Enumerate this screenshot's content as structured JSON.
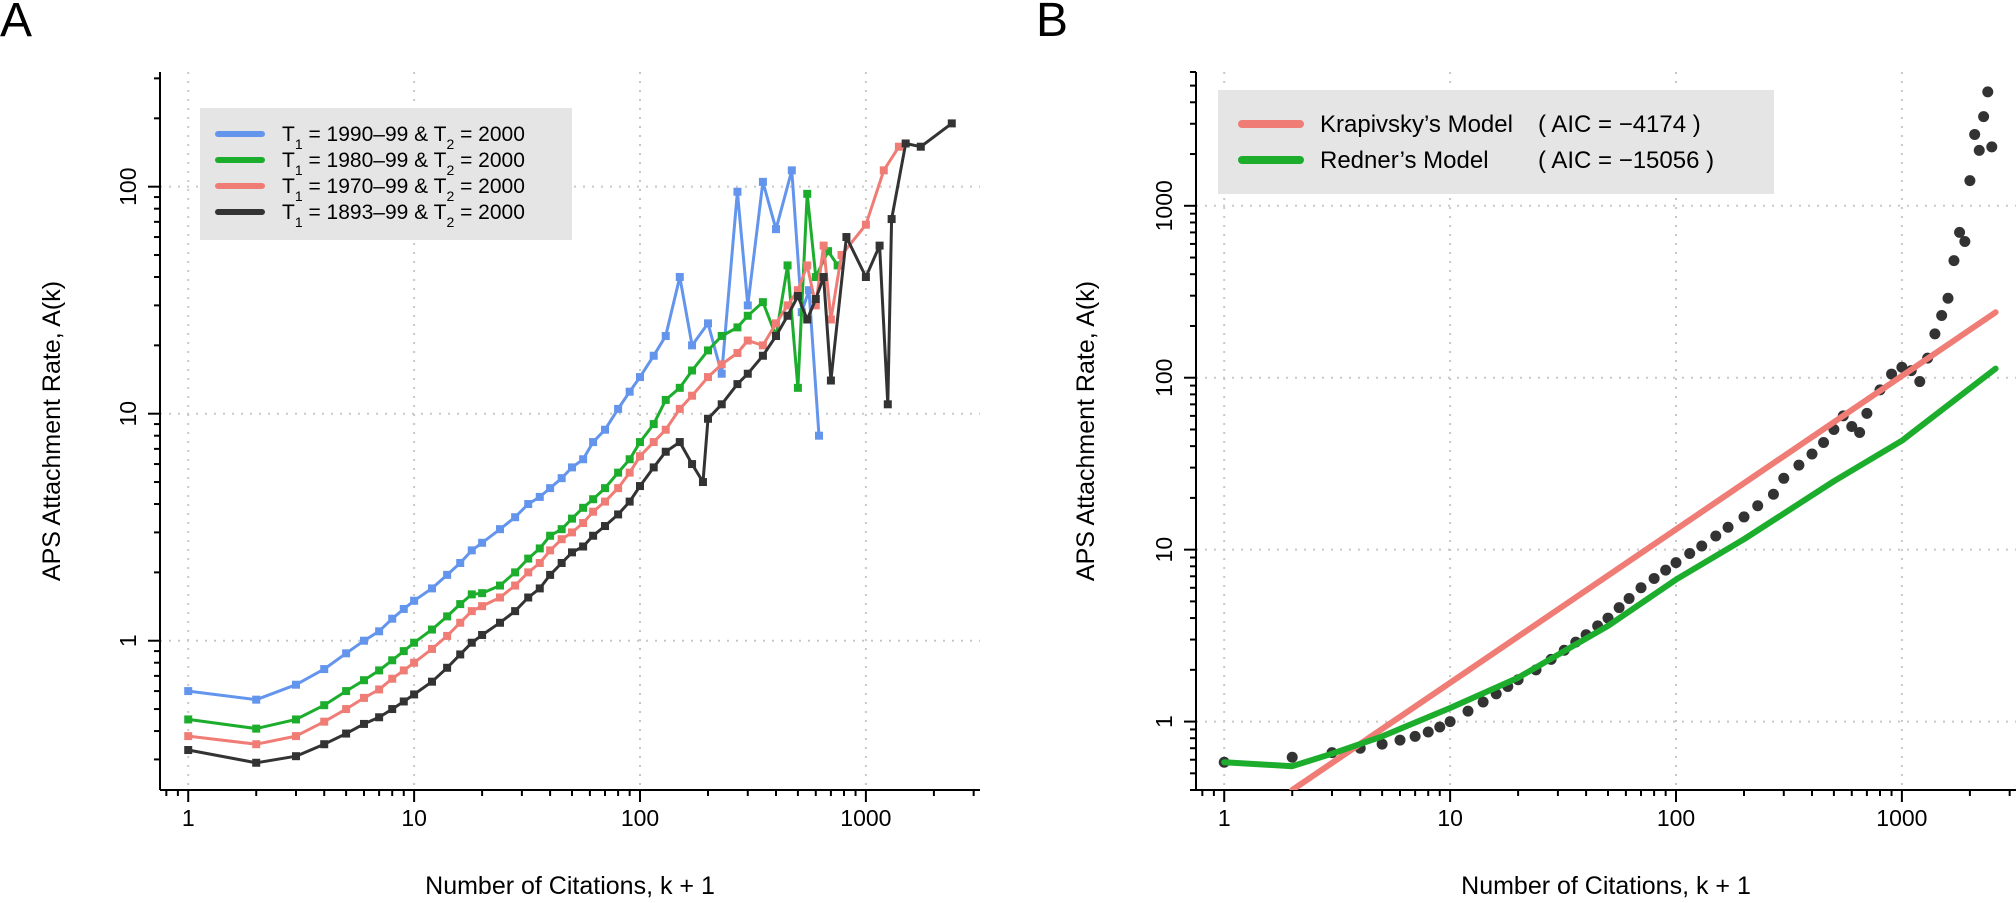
{
  "chart_data": [
    {
      "panel": "A",
      "type": "line",
      "xlabel": "Number of Citations, k + 1",
      "ylabel_main": "APS Attachment Rate, ",
      "ylabel_hat": "^",
      "ylabel_func": "A(k)",
      "x_scale": "log",
      "y_scale": "log",
      "xlim": [
        0.75,
        3200
      ],
      "ylim": [
        0.22,
        320
      ],
      "xticks": [
        {
          "v": 1,
          "label": "1"
        },
        {
          "v": 10,
          "label": "10"
        },
        {
          "v": 100,
          "label": "100"
        },
        {
          "v": 1000,
          "label": "1000"
        }
      ],
      "yticks": [
        {
          "v": 1,
          "label": "1"
        },
        {
          "v": 10,
          "label": "10"
        },
        {
          "v": 100,
          "label": "100"
        }
      ],
      "grid": true,
      "legend_position": "top-left",
      "series": [
        {
          "legend": {
            "t1": "T",
            "t1sub": "1",
            "t1rest": " = 1990–99 & T",
            "t2sub": "2",
            "t2rest": " = 2000"
          },
          "color": "#6495ED",
          "x": [
            1,
            2,
            3,
            4,
            5,
            6,
            7,
            8,
            9,
            10,
            12,
            14,
            16,
            18,
            20,
            24,
            28,
            32,
            36,
            40,
            45,
            50,
            56,
            62,
            70,
            80,
            90,
            100,
            115,
            130,
            150,
            170,
            200,
            230,
            270,
            300,
            350,
            400,
            470,
            520,
            560,
            620
          ],
          "y": [
            0.6,
            0.55,
            0.64,
            0.75,
            0.88,
            1.0,
            1.1,
            1.25,
            1.38,
            1.5,
            1.7,
            1.95,
            2.2,
            2.5,
            2.7,
            3.1,
            3.5,
            4.0,
            4.3,
            4.7,
            5.2,
            5.8,
            6.3,
            7.5,
            8.5,
            10.5,
            12.5,
            14.5,
            18.0,
            22.0,
            40.0,
            20.0,
            25.0,
            15.0,
            95.0,
            30.0,
            105.0,
            65.0,
            118.0,
            28.0,
            35.0,
            8.0
          ]
        },
        {
          "legend": {
            "t1": "T",
            "t1sub": "1",
            "t1rest": " = 1980–99 & T",
            "t2sub": "2",
            "t2rest": " = 2000"
          },
          "color": "#1DAD2D",
          "x": [
            1,
            2,
            3,
            4,
            5,
            6,
            7,
            8,
            9,
            10,
            12,
            14,
            16,
            18,
            20,
            24,
            28,
            32,
            36,
            40,
            45,
            50,
            56,
            62,
            70,
            80,
            90,
            100,
            115,
            130,
            150,
            170,
            200,
            230,
            270,
            300,
            350,
            400,
            450,
            500,
            550,
            600,
            680,
            750
          ],
          "y": [
            0.45,
            0.41,
            0.45,
            0.52,
            0.6,
            0.67,
            0.74,
            0.82,
            0.9,
            0.98,
            1.12,
            1.28,
            1.45,
            1.6,
            1.62,
            1.75,
            2.0,
            2.3,
            2.55,
            2.9,
            3.1,
            3.45,
            3.85,
            4.2,
            4.7,
            5.5,
            6.3,
            7.5,
            9.0,
            11.5,
            13.0,
            15.5,
            19.0,
            22.0,
            24.0,
            27.0,
            31.0,
            22.0,
            45.0,
            13.0,
            93.0,
            40.0,
            52.0,
            45.0
          ]
        },
        {
          "legend": {
            "t1": "T",
            "t1sub": "1",
            "t1rest": " = 1970–99 & T",
            "t2sub": "2",
            "t2rest": " = 2000"
          },
          "color": "#F07C76",
          "x": [
            1,
            2,
            3,
            4,
            5,
            6,
            7,
            8,
            9,
            10,
            12,
            14,
            16,
            18,
            20,
            24,
            28,
            32,
            36,
            40,
            45,
            50,
            56,
            62,
            70,
            80,
            90,
            100,
            115,
            130,
            150,
            170,
            200,
            230,
            270,
            300,
            350,
            400,
            450,
            500,
            550,
            600,
            650,
            700,
            780,
            1000,
            1200,
            1400
          ],
          "y": [
            0.38,
            0.35,
            0.38,
            0.44,
            0.5,
            0.56,
            0.61,
            0.68,
            0.74,
            0.8,
            0.92,
            1.05,
            1.2,
            1.35,
            1.42,
            1.55,
            1.75,
            2.0,
            2.2,
            2.5,
            2.8,
            3.0,
            3.3,
            3.7,
            4.1,
            4.7,
            5.5,
            6.5,
            7.5,
            8.5,
            10.5,
            12.0,
            14.5,
            16.5,
            18.5,
            21.0,
            20.0,
            25.0,
            30.0,
            35.0,
            45.0,
            30.0,
            55.0,
            26.0,
            50.0,
            68.0,
            118.0,
            150.0
          ]
        },
        {
          "legend": {
            "t1": "T",
            "t1sub": "1",
            "t1rest": " = 1893–99 & T",
            "t2sub": "2",
            "t2rest": " = 2000"
          },
          "color": "#333333",
          "x": [
            1,
            2,
            3,
            4,
            5,
            6,
            7,
            8,
            9,
            10,
            12,
            14,
            16,
            18,
            20,
            24,
            28,
            32,
            36,
            40,
            45,
            50,
            56,
            62,
            70,
            80,
            90,
            100,
            115,
            130,
            150,
            170,
            190,
            200,
            230,
            270,
            300,
            350,
            400,
            450,
            500,
            550,
            600,
            650,
            700,
            820,
            1000,
            1150,
            1250,
            1300,
            1500,
            1750,
            2400
          ],
          "y": [
            0.33,
            0.29,
            0.31,
            0.35,
            0.39,
            0.43,
            0.46,
            0.5,
            0.54,
            0.58,
            0.66,
            0.76,
            0.87,
            0.98,
            1.06,
            1.2,
            1.35,
            1.55,
            1.7,
            1.95,
            2.2,
            2.45,
            2.6,
            2.9,
            3.2,
            3.6,
            4.1,
            4.8,
            5.8,
            6.8,
            7.5,
            6.0,
            5.0,
            9.5,
            11.0,
            13.5,
            15.0,
            18.0,
            22.0,
            27.0,
            33.0,
            26.0,
            32.0,
            40.0,
            14.0,
            60.0,
            40.0,
            55.0,
            11.0,
            72.0,
            155.0,
            150.0,
            190.0
          ]
        }
      ]
    },
    {
      "panel": "B",
      "type": "scatter",
      "xlabel": "Number of Citations, k + 1",
      "ylabel_main": "APS Attachment Rate, ",
      "ylabel_hat": "^",
      "ylabel_func": "A(k)",
      "x_scale": "log",
      "y_scale": "log",
      "xlim": [
        0.75,
        3200
      ],
      "ylim": [
        0.4,
        6000
      ],
      "xticks": [
        {
          "v": 1,
          "label": "1"
        },
        {
          "v": 10,
          "label": "10"
        },
        {
          "v": 100,
          "label": "100"
        },
        {
          "v": 1000,
          "label": "1000"
        }
      ],
      "yticks": [
        {
          "v": 1,
          "label": "1"
        },
        {
          "v": 10,
          "label": "10"
        },
        {
          "v": 100,
          "label": "100"
        },
        {
          "v": 1000,
          "label": "1000"
        }
      ],
      "grid": true,
      "legend_position": "top-left",
      "points": {
        "color": "#333333",
        "x": [
          1,
          2,
          3,
          4,
          5,
          6,
          7,
          8,
          9,
          10,
          12,
          14,
          16,
          18,
          20,
          24,
          28,
          32,
          36,
          40,
          45,
          50,
          56,
          62,
          70,
          80,
          90,
          100,
          115,
          130,
          150,
          170,
          200,
          230,
          270,
          300,
          350,
          400,
          450,
          500,
          550,
          600,
          650,
          700,
          800,
          900,
          1000,
          1100,
          1200,
          1300,
          1400,
          1500,
          1600,
          1700,
          1800,
          1900,
          2000,
          2100,
          2200,
          2300,
          2400,
          2500
        ],
        "y": [
          0.58,
          0.62,
          0.66,
          0.7,
          0.74,
          0.78,
          0.82,
          0.87,
          0.93,
          1.0,
          1.15,
          1.3,
          1.45,
          1.6,
          1.75,
          2.0,
          2.3,
          2.6,
          2.9,
          3.2,
          3.6,
          4.0,
          4.6,
          5.2,
          6.0,
          6.8,
          7.6,
          8.4,
          9.5,
          10.5,
          12.0,
          13.5,
          15.5,
          18.0,
          21.0,
          26.0,
          31.0,
          36.0,
          42.0,
          50.0,
          60.0,
          52.0,
          48.0,
          62.0,
          85.0,
          105.0,
          115.0,
          110.0,
          95.0,
          130.0,
          180.0,
          230.0,
          290.0,
          480.0,
          700.0,
          620.0,
          1400.0,
          2600.0,
          2100.0,
          3300.0,
          4600.0,
          2200.0
        ]
      },
      "series": [
        {
          "legend_model": "Krapivsky’s Model",
          "legend_aic": "( AIC = −4174 )",
          "color": "#F07C76",
          "x": [
            2,
            2600
          ],
          "y": [
            0.4,
            240.0
          ]
        },
        {
          "legend_model": "Redner’s Model",
          "legend_aic": "( AIC = −15056 )",
          "color": "#1DAD2D",
          "x": [
            1,
            2,
            3,
            5,
            10,
            20,
            50,
            100,
            200,
            500,
            1000,
            2600
          ],
          "y": [
            0.58,
            0.55,
            0.65,
            0.82,
            1.2,
            1.8,
            3.6,
            6.7,
            11.5,
            25.0,
            43.0,
            113.0
          ]
        }
      ]
    }
  ]
}
